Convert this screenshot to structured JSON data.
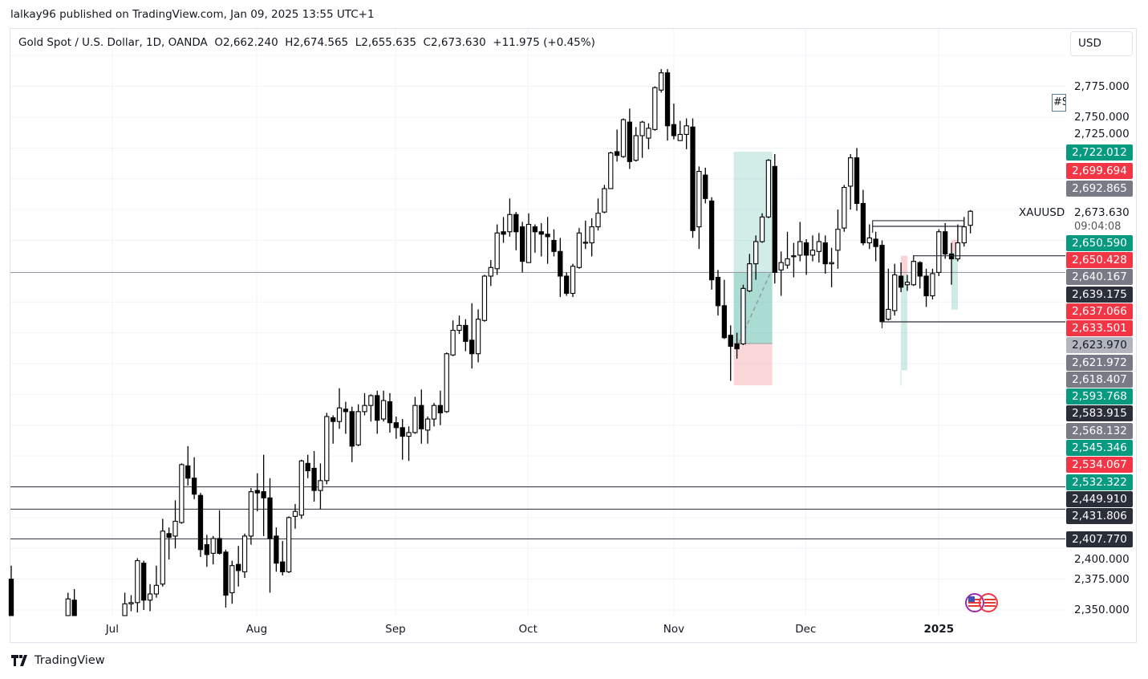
{
  "publish_line": "lalkay96 published on TradingView.com, Jan 09, 2025 13:55 UTC+1",
  "legend": {
    "symbol": "Gold Spot / U.S. Dollar, 1D, OANDA",
    "open": "O2,662.240",
    "high": "H2,674.565",
    "low": "L2,655.635",
    "close": "C2,673.630",
    "change": "+11.975 (+0.45%)"
  },
  "currency_button": "USD",
  "note_marker": "#S",
  "symbol_label": "XAUUSD",
  "last_price": "2,673.630",
  "countdown": "09:04:08",
  "footer_brand": "TradingView",
  "colors": {
    "green": "#089981",
    "red": "#f23645",
    "gray": "#787b86",
    "light_gray": "#b2b5be",
    "dark": "#2a2e39",
    "candle_down": "#000000",
    "candle_up": "#ffffff"
  },
  "chart_data": {
    "type": "candlestick",
    "title": "",
    "price_ticks": [
      {
        "value": 2775,
        "label": "2,775.000"
      },
      {
        "value": 2750,
        "label": "2,750.000"
      },
      {
        "value": 2725,
        "label": "2,725.000"
      },
      {
        "value": 2400,
        "label": "2,400.000"
      },
      {
        "value": 2375,
        "label": "2,375.000"
      },
      {
        "value": 2350,
        "label": "2,350.000"
      }
    ],
    "ylim": [
      2346,
      2810
    ],
    "time_ticks": [
      {
        "bar": 16,
        "label": "Jul"
      },
      {
        "bar": 38.9,
        "label": "Aug"
      },
      {
        "bar": 60.9,
        "label": "Sep"
      },
      {
        "bar": 81.9,
        "label": "Oct"
      },
      {
        "bar": 105,
        "label": "Nov"
      },
      {
        "bar": 125.9,
        "label": "Dec"
      },
      {
        "bar": 147,
        "label": "2025",
        "bold": true
      }
    ],
    "ohlc_fields": [
      "open",
      "high",
      "low",
      "close"
    ],
    "candles": [
      [
        2375,
        2386,
        2335,
        2340
      ],
      null,
      null,
      null,
      null,
      null,
      null,
      null,
      null,
      [
        2340,
        2364,
        2330,
        2359
      ],
      [
        2358,
        2367,
        2328,
        2335
      ],
      null,
      null,
      null,
      null,
      null,
      null,
      null,
      [
        2340,
        2364,
        2330,
        2355
      ],
      [
        2355,
        2362,
        2349,
        2356
      ],
      [
        2356,
        2392,
        2348,
        2390
      ],
      [
        2388,
        2390,
        2350,
        2358
      ],
      [
        2358,
        2371,
        2349,
        2363
      ],
      [
        2363,
        2386,
        2360,
        2370
      ],
      [
        2371,
        2424,
        2369,
        2414
      ],
      [
        2412,
        2417,
        2391,
        2409
      ],
      [
        2410,
        2439,
        2400,
        2422
      ],
      [
        2421,
        2469,
        2420,
        2468
      ],
      [
        2467,
        2483,
        2451,
        2457
      ],
      [
        2457,
        2474,
        2440,
        2444
      ],
      [
        2443,
        2445,
        2393,
        2399
      ],
      [
        2403,
        2411,
        2385,
        2395
      ],
      [
        2396,
        2410,
        2387,
        2408
      ],
      [
        2408,
        2431,
        2395,
        2396
      ],
      [
        2397,
        2399,
        2352,
        2362
      ],
      [
        2364,
        2390,
        2355,
        2386
      ],
      [
        2387,
        2402,
        2369,
        2382
      ],
      [
        2381,
        2412,
        2376,
        2410
      ],
      [
        2410,
        2449,
        2403,
        2446
      ],
      [
        2447,
        2461,
        2430,
        2445
      ],
      [
        2446,
        2476,
        2410,
        2441
      ],
      [
        2441,
        2457,
        2364,
        2408
      ],
      [
        2410,
        2417,
        2381,
        2388
      ],
      [
        2389,
        2406,
        2378,
        2381
      ],
      [
        2381,
        2426,
        2380,
        2425
      ],
      [
        2426,
        2436,
        2416,
        2430
      ],
      [
        2427,
        2472,
        2424,
        2471
      ],
      [
        2469,
        2476,
        2457,
        2463
      ],
      [
        2465,
        2479,
        2438,
        2447
      ],
      [
        2447,
        2469,
        2432,
        2455
      ],
      [
        2455,
        2510,
        2452,
        2507
      ],
      [
        2506,
        2508,
        2485,
        2503
      ],
      [
        2503,
        2530,
        2497,
        2514
      ],
      [
        2513,
        2519,
        2493,
        2511
      ],
      [
        2511,
        2515,
        2470,
        2483
      ],
      [
        2484,
        2517,
        2483,
        2511
      ],
      [
        2511,
        2526,
        2508,
        2516
      ],
      [
        2516,
        2525,
        2503,
        2524
      ],
      [
        2524,
        2528,
        2493,
        2504
      ],
      [
        2505,
        2528,
        2503,
        2520
      ],
      [
        2519,
        2526,
        2494,
        2502
      ],
      [
        2502,
        2507,
        2489,
        2498
      ],
      [
        2498,
        2505,
        2472,
        2491
      ],
      [
        2491,
        2499,
        2471,
        2494
      ],
      [
        2494,
        2523,
        2493,
        2516
      ],
      [
        2516,
        2529,
        2485,
        2497
      ],
      [
        2496,
        2507,
        2485,
        2505
      ],
      [
        2505,
        2518,
        2499,
        2516
      ],
      [
        2516,
        2528,
        2500,
        2510
      ],
      [
        2511,
        2559,
        2510,
        2558
      ],
      [
        2557,
        2585,
        2556,
        2577
      ],
      [
        2577,
        2589,
        2574,
        2581
      ],
      [
        2581,
        2586,
        2560,
        2568
      ],
      [
        2569,
        2599,
        2546,
        2558
      ],
      [
        2558,
        2594,
        2551,
        2586
      ],
      [
        2585,
        2622,
        2584,
        2621
      ],
      [
        2621,
        2634,
        2613,
        2628
      ],
      [
        2627,
        2663,
        2622,
        2656
      ],
      [
        2657,
        2669,
        2648,
        2655
      ],
      [
        2657,
        2684,
        2653,
        2671
      ],
      [
        2671,
        2673,
        2642,
        2657
      ],
      [
        2661,
        2665,
        2624,
        2633
      ],
      [
        2632,
        2672,
        2632,
        2663
      ],
      [
        2661,
        2663,
        2640,
        2657
      ],
      [
        2657,
        2664,
        2637,
        2655
      ],
      [
        2655,
        2669,
        2631,
        2653
      ],
      [
        2650,
        2659,
        2637,
        2641
      ],
      [
        2641,
        2652,
        2604,
        2621
      ],
      [
        2621,
        2624,
        2605,
        2607
      ],
      [
        2607,
        2631,
        2604,
        2629
      ],
      [
        2628,
        2660,
        2627,
        2656
      ],
      [
        2648,
        2666,
        2643,
        2648.5
      ],
      [
        2648,
        2668,
        2637,
        2661
      ],
      [
        2661,
        2684,
        2658,
        2672
      ],
      [
        2673,
        2695,
        2672,
        2692
      ],
      [
        2692,
        2722,
        2692,
        2721
      ],
      [
        2722,
        2740,
        2714,
        2719
      ],
      [
        2718,
        2749,
        2717,
        2748
      ],
      [
        2746,
        2757,
        2708,
        2714
      ],
      [
        2715,
        2742,
        2714,
        2735
      ],
      [
        2735,
        2747,
        2717,
        2746
      ],
      [
        2733,
        2745,
        2724,
        2741
      ],
      [
        2740,
        2775,
        2739,
        2774
      ],
      [
        2772,
        2789,
        2770,
        2786
      ],
      [
        2786,
        2789,
        2731,
        2743
      ],
      [
        2744,
        2761,
        2732,
        2735
      ],
      [
        2731,
        2747,
        2731,
        2736
      ],
      [
        2736,
        2749,
        2724,
        2743
      ],
      [
        2742,
        2749,
        2652,
        2658
      ],
      [
        2661,
        2710,
        2643,
        2706
      ],
      [
        2703,
        2709,
        2680,
        2684
      ],
      [
        2682,
        2685,
        2610,
        2618
      ],
      [
        2620,
        2626,
        2589,
        2597
      ],
      [
        2597,
        2618,
        2570,
        2571
      ],
      [
        2573,
        2581,
        2536,
        2564
      ],
      [
        2566,
        2575,
        2554,
        2562
      ],
      [
        2566,
        2614,
        2565,
        2611
      ],
      [
        2609,
        2639,
        2608,
        2631
      ],
      [
        2631,
        2654,
        2618,
        2649
      ],
      [
        2649,
        2672,
        2648,
        2669
      ],
      [
        2669,
        2716,
        2668,
        2715
      ],
      [
        2710,
        2720,
        2615,
        2624
      ],
      [
        2626,
        2641,
        2605,
        2632
      ],
      [
        2630,
        2657,
        2627,
        2635
      ],
      [
        2637,
        2648,
        2620,
        2637.5
      ],
      [
        2638,
        2665,
        2633,
        2649
      ],
      [
        2648,
        2651,
        2622,
        2638
      ],
      [
        2638,
        2654,
        2633,
        2642
      ],
      [
        2641,
        2656,
        2632,
        2649
      ],
      [
        2648,
        2654,
        2623,
        2631
      ],
      [
        2631,
        2644,
        2612,
        2632
      ],
      [
        2642,
        2675,
        2627,
        2659
      ],
      [
        2660,
        2695,
        2657,
        2693
      ],
      [
        2694,
        2720,
        2675,
        2717
      ],
      [
        2717,
        2725,
        2674,
        2680
      ],
      [
        2680,
        2691,
        2646,
        2648
      ],
      [
        2648,
        2663,
        2643,
        2652
      ],
      [
        2651,
        2657,
        2633,
        2645
      ],
      [
        2646,
        2650,
        2583,
        2584
      ],
      [
        2586,
        2627,
        2585,
        2594
      ],
      [
        2593,
        2631,
        2589,
        2622
      ],
      [
        2621,
        2632,
        2608,
        2612
      ],
      [
        2614,
        2622,
        2609,
        2616
      ],
      [
        2614,
        2638,
        2613,
        2633
      ],
      [
        2632,
        2633,
        2611,
        2621
      ],
      [
        2621,
        2627,
        2596,
        2605
      ],
      [
        2605,
        2627,
        2602,
        2623
      ],
      [
        2624,
        2659,
        2621,
        2657
      ],
      [
        2657,
        2664,
        2635,
        2639
      ],
      [
        2639,
        2648,
        2614,
        2635
      ],
      [
        2635,
        2663,
        2633,
        2648
      ],
      [
        2648,
        2669,
        2645,
        2661
      ],
      [
        2662.24,
        2674.565,
        2655.635,
        2673.63
      ]
    ],
    "horizontal_levels": [
      {
        "price": 2623.97,
        "color": "#9598a1"
      },
      {
        "price": 2449.91,
        "color": "#2a2e39"
      },
      {
        "price": 2431.806,
        "color": "#2a2e39"
      },
      {
        "price": 2407.77,
        "color": "#2a2e39"
      }
    ],
    "ray_levels": [
      {
        "price": 2666,
        "from_bar": 136.5,
        "to_bar": 151
      },
      {
        "price": 2661.4,
        "from_bar": 136.5,
        "to_bar": 151
      },
      {
        "price": 2637.5,
        "from_bar": 143,
        "to_bar": null
      },
      {
        "price": 2583.9,
        "from_bar": 138,
        "to_bar": null
      }
    ],
    "long_position": {
      "from_bar": 114.5,
      "to_bar": 120.6,
      "target": 2722.012,
      "entry": 2566.3,
      "stop": 2532.322,
      "current": 2623.97
    },
    "small_positions": [
      {
        "bar": 141.5,
        "stop": 2637.5,
        "entry": 2622,
        "target": 2544.5,
        "low_wick": 2532
      },
      {
        "bar": 149.5,
        "stop": 2650.4,
        "entry": 2640,
        "target": 2593.8
      }
    ],
    "price_labels": [
      {
        "value": "2,722.012",
        "color": "green"
      },
      {
        "value": "2,699.694",
        "color": "red"
      },
      {
        "value": "2,692.865",
        "color": "gray"
      },
      {
        "value": "2,650.590",
        "color": "green"
      },
      {
        "value": "2,650.428",
        "color": "red"
      },
      {
        "value": "2,640.167",
        "color": "gray"
      },
      {
        "value": "2,639.175",
        "color": "dark"
      },
      {
        "value": "2,637.066",
        "color": "red"
      },
      {
        "value": "2,633.501",
        "color": "red"
      },
      {
        "value": "2,623.970",
        "color": "light_gray"
      },
      {
        "value": "2,621.972",
        "color": "gray"
      },
      {
        "value": "2,618.407",
        "color": "gray"
      },
      {
        "value": "2,593.768",
        "color": "green"
      },
      {
        "value": "2,583.915",
        "color": "dark"
      },
      {
        "value": "2,568.132",
        "color": "gray"
      },
      {
        "value": "2,545.346",
        "color": "green"
      },
      {
        "value": "2,534.067",
        "color": "red"
      },
      {
        "value": "2,532.322",
        "color": "green"
      },
      {
        "value": "2,449.910",
        "color": "dark"
      },
      {
        "value": "2,431.806",
        "color": "dark"
      },
      {
        "value": "2,407.770",
        "color": "dark"
      }
    ]
  }
}
